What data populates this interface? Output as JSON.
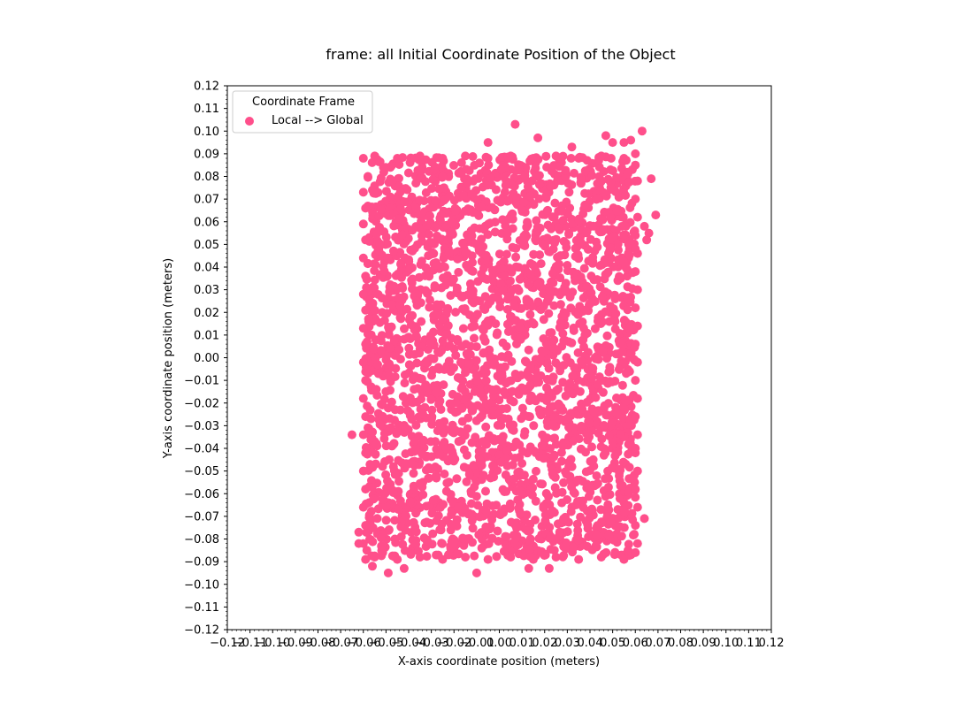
{
  "chart_data": {
    "type": "scatter",
    "title": "frame: all Initial Coordinate Position of the Object",
    "xlabel": "X-axis coordinate position (meters)",
    "ylabel": "Y-axis coordinate position (meters)",
    "xlim": [
      -0.12,
      0.12
    ],
    "ylim": [
      -0.12,
      0.12
    ],
    "x_ticks": [
      -0.12,
      -0.11,
      -0.1,
      -0.09,
      -0.08,
      -0.07,
      -0.06,
      -0.05,
      -0.04,
      -0.03,
      -0.02,
      -0.01,
      0.0,
      0.01,
      0.02,
      0.03,
      0.04,
      0.05,
      0.06,
      0.07,
      0.08,
      0.09,
      0.1,
      0.11,
      0.12
    ],
    "x_tick_labels": [
      "−0.12",
      "−0.11",
      "−0.10",
      "−0.09",
      "−0.08",
      "−0.07",
      "−0.06",
      "−0.05",
      "−0.04",
      "−0.03",
      "−0.02",
      "−0.01",
      "0.00",
      "0.01",
      "0.02",
      "0.03",
      "0.04",
      "0.05",
      "0.06",
      "0.07",
      "0.08",
      "0.09",
      "0.10",
      "0.11",
      "0.12"
    ],
    "y_ticks": [
      0.12,
      0.11,
      0.1,
      0.09,
      0.08,
      0.07,
      0.06,
      0.05,
      0.04,
      0.03,
      0.02,
      0.01,
      0.0,
      -0.01,
      -0.02,
      -0.03,
      -0.04,
      -0.05,
      -0.06,
      -0.07,
      -0.08,
      -0.09,
      -0.1,
      -0.11,
      -0.12
    ],
    "y_tick_labels": [
      "0.12",
      "0.11",
      "0.10",
      "0.09",
      "0.08",
      "0.07",
      "0.06",
      "0.05",
      "0.04",
      "0.03",
      "0.02",
      "0.01",
      "0.00",
      "−0.01",
      "−0.02",
      "−0.03",
      "−0.04",
      "−0.05",
      "−0.06",
      "−0.07",
      "−0.08",
      "−0.09",
      "−0.10",
      "−0.11",
      "−0.12"
    ],
    "grid": false,
    "legend": {
      "title": "Coordinate Frame",
      "placement": "top-left"
    },
    "series": [
      {
        "name": "Local --> Global",
        "color": "#ff4f8b",
        "points": [
          [
            -0.06,
            0.088
          ],
          [
            -0.058,
            0.08
          ],
          [
            -0.06,
            0.073
          ],
          [
            -0.059,
            0.066
          ],
          [
            -0.06,
            0.059
          ],
          [
            -0.059,
            0.052
          ],
          [
            -0.06,
            0.044
          ],
          [
            -0.059,
            0.036
          ],
          [
            -0.06,
            0.028
          ],
          [
            -0.059,
            0.021
          ],
          [
            -0.06,
            0.013
          ],
          [
            -0.059,
            0.006
          ],
          [
            -0.06,
            -0.002
          ],
          [
            -0.059,
            -0.01
          ],
          [
            -0.06,
            -0.018
          ],
          [
            -0.059,
            -0.026
          ],
          [
            -0.06,
            -0.034
          ],
          [
            -0.059,
            -0.042
          ],
          [
            -0.06,
            -0.05
          ],
          [
            -0.059,
            -0.058
          ],
          [
            -0.06,
            -0.066
          ],
          [
            -0.059,
            -0.074
          ],
          [
            -0.06,
            -0.082
          ],
          [
            -0.059,
            -0.089
          ],
          [
            0.06,
            0.085
          ],
          [
            0.061,
            0.078
          ],
          [
            0.06,
            0.07
          ],
          [
            0.061,
            0.062
          ],
          [
            0.06,
            0.054
          ],
          [
            0.061,
            0.046
          ],
          [
            0.06,
            0.038
          ],
          [
            0.061,
            0.03
          ],
          [
            0.06,
            0.022
          ],
          [
            0.061,
            0.014
          ],
          [
            0.06,
            0.006
          ],
          [
            0.061,
            -0.002
          ],
          [
            0.06,
            -0.01
          ],
          [
            0.061,
            -0.018
          ],
          [
            0.06,
            -0.026
          ],
          [
            0.061,
            -0.034
          ],
          [
            0.06,
            -0.042
          ],
          [
            0.061,
            -0.05
          ],
          [
            0.06,
            -0.058
          ],
          [
            0.061,
            -0.066
          ],
          [
            0.06,
            -0.074
          ],
          [
            0.061,
            -0.082
          ],
          [
            0.06,
            -0.086
          ],
          [
            -0.055,
            0.089
          ],
          [
            -0.045,
            0.088
          ],
          [
            -0.035,
            0.089
          ],
          [
            -0.025,
            0.088
          ],
          [
            -0.015,
            0.089
          ],
          [
            -0.005,
            0.088
          ],
          [
            0.005,
            0.089
          ],
          [
            0.015,
            0.088
          ],
          [
            0.025,
            0.089
          ],
          [
            0.035,
            0.088
          ],
          [
            0.045,
            0.089
          ],
          [
            0.055,
            0.088
          ],
          [
            -0.055,
            -0.088
          ],
          [
            -0.045,
            -0.089
          ],
          [
            -0.035,
            -0.088
          ],
          [
            -0.025,
            -0.089
          ],
          [
            -0.015,
            -0.088
          ],
          [
            -0.005,
            -0.089
          ],
          [
            0.005,
            -0.088
          ],
          [
            0.015,
            -0.089
          ],
          [
            0.025,
            -0.088
          ],
          [
            0.035,
            -0.089
          ],
          [
            0.045,
            -0.088
          ],
          [
            0.055,
            -0.089
          ],
          [
            0.007,
            0.103
          ],
          [
            0.017,
            0.097
          ],
          [
            -0.005,
            0.095
          ],
          [
            0.032,
            0.093
          ],
          [
            0.047,
            0.098
          ],
          [
            0.05,
            0.095
          ],
          [
            0.055,
            0.095
          ],
          [
            0.058,
            0.096
          ],
          [
            0.063,
            0.1
          ],
          [
            0.06,
            0.09
          ],
          [
            0.067,
            0.079
          ],
          [
            0.069,
            0.063
          ],
          [
            0.066,
            0.055
          ],
          [
            0.065,
            0.052
          ],
          [
            0.064,
            0.058
          ],
          [
            0.06,
            0.048
          ],
          [
            -0.065,
            -0.034
          ],
          [
            -0.062,
            -0.077
          ],
          [
            -0.062,
            -0.082
          ],
          [
            -0.049,
            -0.095
          ],
          [
            -0.042,
            -0.093
          ],
          [
            -0.01,
            -0.095
          ],
          [
            0.013,
            -0.093
          ],
          [
            0.022,
            -0.093
          ],
          [
            0.064,
            -0.071
          ],
          [
            0.06,
            -0.04
          ],
          [
            -0.056,
            -0.092
          ]
        ]
      }
    ]
  }
}
